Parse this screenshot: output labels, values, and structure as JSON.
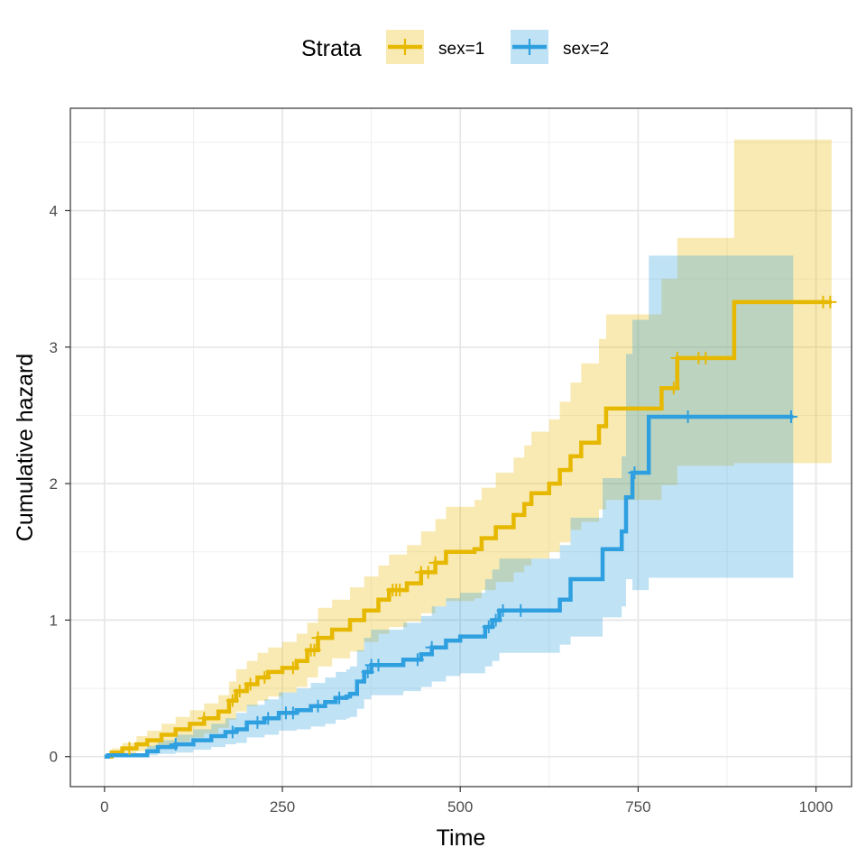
{
  "chart_data": {
    "type": "step",
    "title": "",
    "xlabel": "Time",
    "ylabel": "Cumulative hazard",
    "xlim": [
      -48,
      1050
    ],
    "ylim": [
      -0.22,
      4.75
    ],
    "x_ticks": [
      0,
      250,
      500,
      750,
      1000
    ],
    "y_ticks": [
      0,
      1,
      2,
      3,
      4
    ],
    "x_tick_labels": [
      "0",
      "250",
      "500",
      "750",
      "1000"
    ],
    "y_tick_labels": [
      "0",
      "1",
      "2",
      "3",
      "4"
    ],
    "grid": true,
    "legend": {
      "title": "Strata",
      "position": "top",
      "entries": [
        "sex=1",
        "sex=2"
      ]
    },
    "series": [
      {
        "name": "sex=1",
        "color": "#E7B800",
        "band_color": "#E7B800",
        "points": [
          [
            0,
            0
          ],
          [
            10,
            0.03
          ],
          [
            25,
            0.06
          ],
          [
            45,
            0.09
          ],
          [
            60,
            0.12
          ],
          [
            80,
            0.16
          ],
          [
            100,
            0.2
          ],
          [
            120,
            0.24
          ],
          [
            140,
            0.28
          ],
          [
            160,
            0.33
          ],
          [
            175,
            0.41
          ],
          [
            185,
            0.48
          ],
          [
            200,
            0.53
          ],
          [
            215,
            0.58
          ],
          [
            230,
            0.62
          ],
          [
            250,
            0.65
          ],
          [
            270,
            0.7
          ],
          [
            285,
            0.78
          ],
          [
            300,
            0.87
          ],
          [
            320,
            0.93
          ],
          [
            345,
            1.0
          ],
          [
            365,
            1.07
          ],
          [
            385,
            1.15
          ],
          [
            400,
            1.22
          ],
          [
            425,
            1.27
          ],
          [
            445,
            1.35
          ],
          [
            465,
            1.42
          ],
          [
            480,
            1.5
          ],
          [
            520,
            1.52
          ],
          [
            530,
            1.6
          ],
          [
            550,
            1.68
          ],
          [
            575,
            1.77
          ],
          [
            590,
            1.85
          ],
          [
            600,
            1.93
          ],
          [
            625,
            2.0
          ],
          [
            640,
            2.1
          ],
          [
            655,
            2.2
          ],
          [
            670,
            2.3
          ],
          [
            695,
            2.42
          ],
          [
            705,
            2.55
          ],
          [
            783,
            2.7
          ],
          [
            805,
            2.92
          ],
          [
            885,
            3.33
          ],
          [
            1022,
            3.33
          ]
        ],
        "lower": [
          [
            0,
            0
          ],
          [
            10,
            0.01
          ],
          [
            25,
            0.02
          ],
          [
            45,
            0.04
          ],
          [
            60,
            0.06
          ],
          [
            80,
            0.08
          ],
          [
            100,
            0.11
          ],
          [
            120,
            0.14
          ],
          [
            140,
            0.17
          ],
          [
            160,
            0.21
          ],
          [
            175,
            0.27
          ],
          [
            185,
            0.33
          ],
          [
            200,
            0.37
          ],
          [
            215,
            0.41
          ],
          [
            230,
            0.44
          ],
          [
            250,
            0.47
          ],
          [
            270,
            0.51
          ],
          [
            285,
            0.58
          ],
          [
            300,
            0.66
          ],
          [
            320,
            0.72
          ],
          [
            345,
            0.77
          ],
          [
            365,
            0.84
          ],
          [
            385,
            0.9
          ],
          [
            400,
            0.95
          ],
          [
            425,
            0.99
          ],
          [
            445,
            1.05
          ],
          [
            465,
            1.1
          ],
          [
            480,
            1.14
          ],
          [
            520,
            1.16
          ],
          [
            530,
            1.22
          ],
          [
            550,
            1.28
          ],
          [
            575,
            1.35
          ],
          [
            590,
            1.4
          ],
          [
            600,
            1.45
          ],
          [
            625,
            1.5
          ],
          [
            640,
            1.57
          ],
          [
            655,
            1.66
          ],
          [
            670,
            1.72
          ],
          [
            695,
            1.81
          ],
          [
            705,
            1.88
          ],
          [
            783,
            1.99
          ],
          [
            805,
            2.13
          ],
          [
            885,
            2.15
          ],
          [
            1022,
            2.15
          ]
        ],
        "upper": [
          [
            0,
            0
          ],
          [
            10,
            0.06
          ],
          [
            25,
            0.1
          ],
          [
            45,
            0.15
          ],
          [
            60,
            0.19
          ],
          [
            80,
            0.24
          ],
          [
            100,
            0.29
          ],
          [
            120,
            0.34
          ],
          [
            140,
            0.39
          ],
          [
            160,
            0.45
          ],
          [
            175,
            0.55
          ],
          [
            185,
            0.64
          ],
          [
            200,
            0.7
          ],
          [
            215,
            0.76
          ],
          [
            230,
            0.8
          ],
          [
            250,
            0.84
          ],
          [
            270,
            0.9
          ],
          [
            285,
            0.98
          ],
          [
            300,
            1.09
          ],
          [
            320,
            1.15
          ],
          [
            345,
            1.24
          ],
          [
            365,
            1.32
          ],
          [
            385,
            1.4
          ],
          [
            400,
            1.48
          ],
          [
            425,
            1.55
          ],
          [
            445,
            1.65
          ],
          [
            465,
            1.74
          ],
          [
            480,
            1.83
          ],
          [
            520,
            1.88
          ],
          [
            530,
            1.97
          ],
          [
            550,
            2.08
          ],
          [
            575,
            2.19
          ],
          [
            590,
            2.28
          ],
          [
            600,
            2.38
          ],
          [
            625,
            2.47
          ],
          [
            640,
            2.6
          ],
          [
            655,
            2.74
          ],
          [
            670,
            2.88
          ],
          [
            695,
            3.06
          ],
          [
            705,
            3.24
          ],
          [
            783,
            3.5
          ],
          [
            805,
            3.8
          ],
          [
            885,
            4.52
          ],
          [
            1022,
            4.52
          ]
        ],
        "censor_x": [
          35,
          140,
          180,
          190,
          205,
          225,
          265,
          290,
          295,
          300,
          405,
          410,
          415,
          445,
          455,
          465,
          800,
          805,
          835,
          845,
          1010,
          1020
        ]
      },
      {
        "name": "sex=2",
        "color": "#2E9FDF",
        "band_color": "#2E9FDF",
        "points": [
          [
            0,
            0
          ],
          [
            5,
            0.01
          ],
          [
            60,
            0.04
          ],
          [
            75,
            0.07
          ],
          [
            100,
            0.09
          ],
          [
            125,
            0.12
          ],
          [
            150,
            0.15
          ],
          [
            170,
            0.18
          ],
          [
            185,
            0.2
          ],
          [
            200,
            0.25
          ],
          [
            225,
            0.28
          ],
          [
            245,
            0.32
          ],
          [
            270,
            0.34
          ],
          [
            290,
            0.37
          ],
          [
            310,
            0.4
          ],
          [
            325,
            0.43
          ],
          [
            340,
            0.44
          ],
          [
            345,
            0.46
          ],
          [
            355,
            0.55
          ],
          [
            365,
            0.62
          ],
          [
            375,
            0.67
          ],
          [
            420,
            0.71
          ],
          [
            445,
            0.75
          ],
          [
            460,
            0.8
          ],
          [
            480,
            0.85
          ],
          [
            500,
            0.88
          ],
          [
            535,
            0.95
          ],
          [
            545,
            1.0
          ],
          [
            555,
            1.07
          ],
          [
            640,
            1.15
          ],
          [
            655,
            1.3
          ],
          [
            700,
            1.52
          ],
          [
            727,
            1.65
          ],
          [
            733,
            1.9
          ],
          [
            742,
            2.08
          ],
          [
            765,
            2.49
          ],
          [
            968,
            2.49
          ]
        ],
        "lower": [
          [
            0,
            0
          ],
          [
            5,
            0
          ],
          [
            60,
            0.01
          ],
          [
            75,
            0.02
          ],
          [
            100,
            0.03
          ],
          [
            125,
            0.05
          ],
          [
            150,
            0.07
          ],
          [
            170,
            0.09
          ],
          [
            185,
            0.1
          ],
          [
            200,
            0.14
          ],
          [
            225,
            0.16
          ],
          [
            245,
            0.19
          ],
          [
            270,
            0.2
          ],
          [
            290,
            0.22
          ],
          [
            310,
            0.24
          ],
          [
            325,
            0.27
          ],
          [
            340,
            0.28
          ],
          [
            345,
            0.29
          ],
          [
            355,
            0.35
          ],
          [
            365,
            0.42
          ],
          [
            375,
            0.45
          ],
          [
            420,
            0.48
          ],
          [
            445,
            0.51
          ],
          [
            460,
            0.55
          ],
          [
            480,
            0.59
          ],
          [
            500,
            0.61
          ],
          [
            535,
            0.66
          ],
          [
            545,
            0.7
          ],
          [
            555,
            0.76
          ],
          [
            640,
            0.82
          ],
          [
            655,
            0.88
          ],
          [
            700,
            1.02
          ],
          [
            727,
            1.1
          ],
          [
            733,
            1.3
          ],
          [
            742,
            1.22
          ],
          [
            765,
            1.31
          ],
          [
            968,
            1.31
          ]
        ],
        "upper": [
          [
            0,
            0
          ],
          [
            5,
            0.02
          ],
          [
            60,
            0.08
          ],
          [
            75,
            0.12
          ],
          [
            100,
            0.16
          ],
          [
            125,
            0.2
          ],
          [
            150,
            0.24
          ],
          [
            170,
            0.28
          ],
          [
            185,
            0.32
          ],
          [
            200,
            0.38
          ],
          [
            225,
            0.42
          ],
          [
            245,
            0.47
          ],
          [
            270,
            0.5
          ],
          [
            290,
            0.54
          ],
          [
            310,
            0.58
          ],
          [
            325,
            0.62
          ],
          [
            340,
            0.64
          ],
          [
            345,
            0.66
          ],
          [
            355,
            0.78
          ],
          [
            365,
            0.87
          ],
          [
            375,
            0.93
          ],
          [
            420,
            0.98
          ],
          [
            445,
            1.03
          ],
          [
            460,
            1.1
          ],
          [
            480,
            1.16
          ],
          [
            500,
            1.2
          ],
          [
            535,
            1.3
          ],
          [
            545,
            1.37
          ],
          [
            555,
            1.45
          ],
          [
            640,
            1.55
          ],
          [
            655,
            1.75
          ],
          [
            700,
            2.04
          ],
          [
            727,
            2.2
          ],
          [
            733,
            2.95
          ],
          [
            742,
            3.2
          ],
          [
            765,
            3.67
          ],
          [
            968,
            3.67
          ]
        ],
        "censor_x": [
          100,
          180,
          215,
          230,
          255,
          265,
          300,
          330,
          370,
          375,
          385,
          440,
          460,
          540,
          550,
          560,
          585,
          745,
          820,
          965
        ]
      }
    ]
  }
}
